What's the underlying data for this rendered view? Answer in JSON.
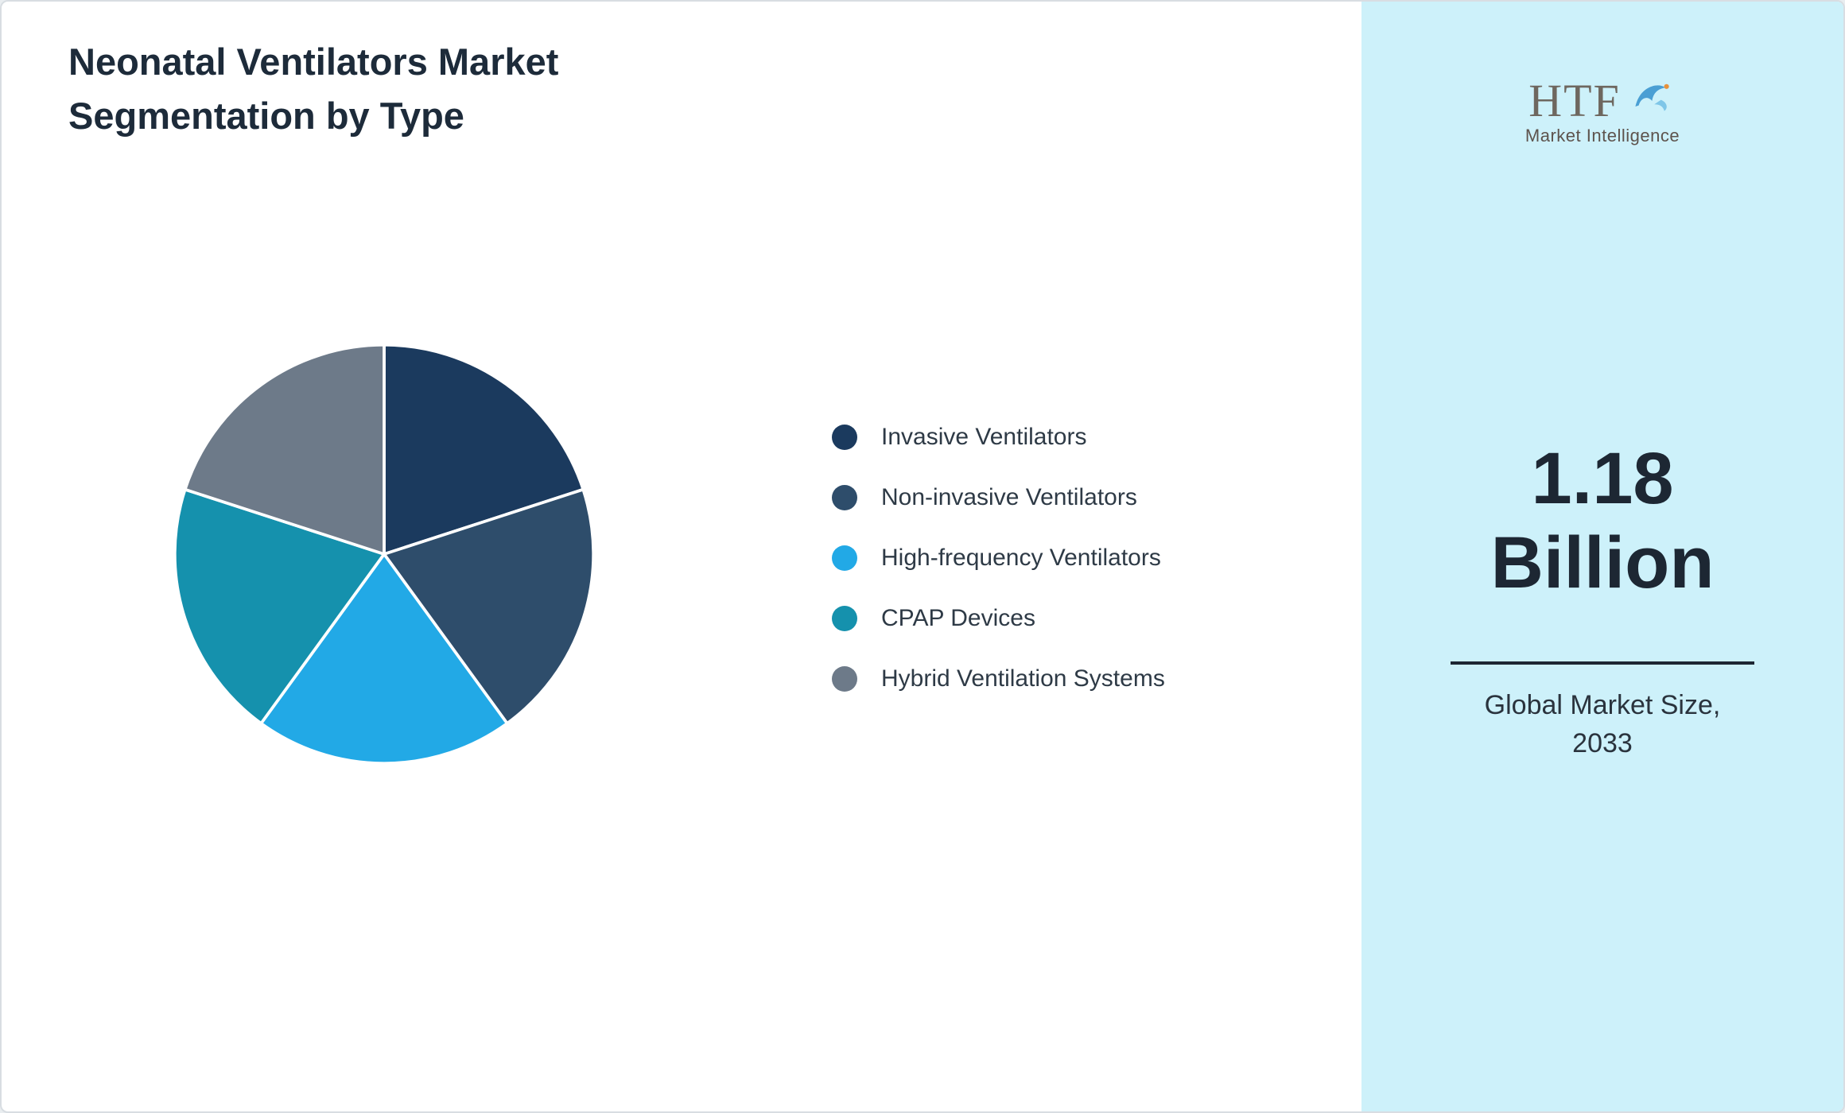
{
  "title_line1": "Neonatal Ventilators Market",
  "title_line2": "Segmentation by Type",
  "logo": {
    "text": "HTF",
    "subtext": "Market Intelligence"
  },
  "sidebar": {
    "value_line1": "1.18",
    "value_line2": "Billion",
    "caption_line1": "Global Market Size,",
    "caption_line2": "2033"
  },
  "colors": {
    "sidebar_bg": "#cdf1fa",
    "text_dark": "#1d2733",
    "divider": "#1d2733"
  },
  "chart_data": {
    "type": "pie",
    "title": "Neonatal Ventilators Market Segmentation by Type",
    "labels": [
      "Invasive Ventilators",
      "Non-invasive Ventilators",
      "High-frequency Ventilators",
      "CPAP Devices",
      "Hybrid Ventilation Systems"
    ],
    "values": [
      20,
      20,
      20,
      20,
      20
    ],
    "colors": [
      "#1b3a5e",
      "#2e4d6b",
      "#22a9e6",
      "#1591ad",
      "#6d7a89"
    ],
    "legend_position": "right",
    "start_angle_deg": 0,
    "direction": "clockwise"
  }
}
